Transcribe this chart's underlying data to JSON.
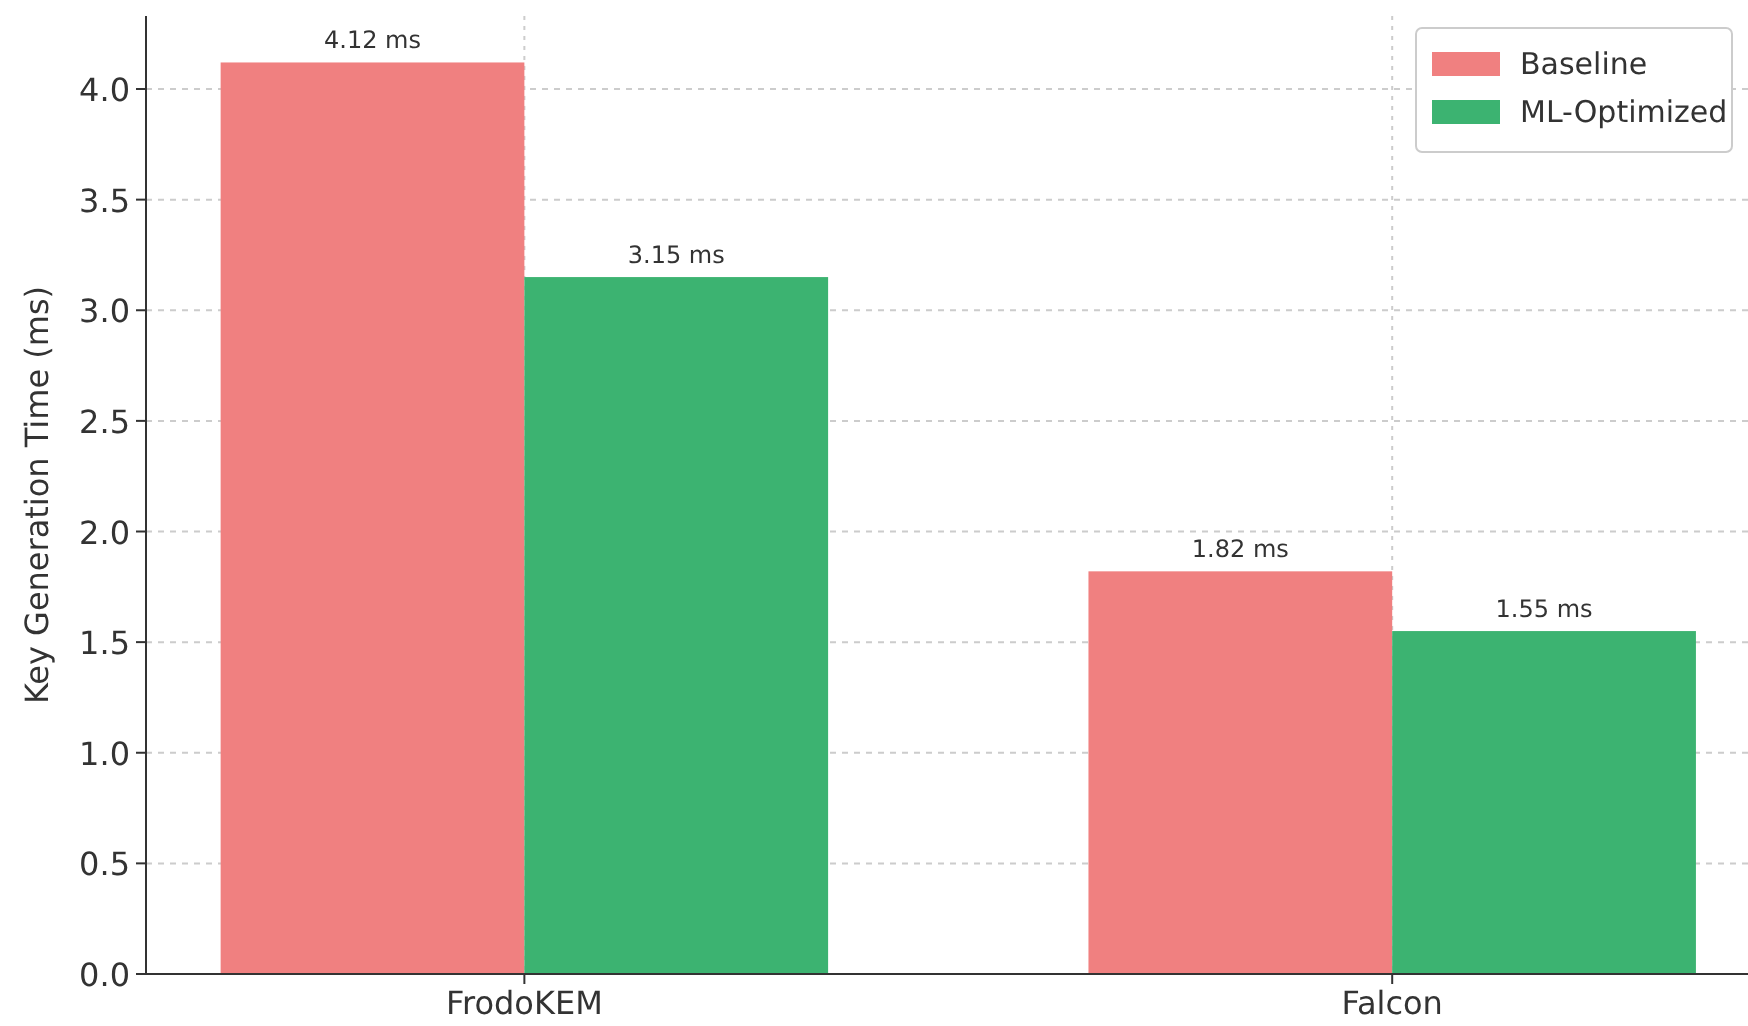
{
  "chart_data": {
    "type": "bar",
    "ylabel": "Key Generation Time (ms)",
    "categories": [
      "FrodoKEM",
      "Falcon"
    ],
    "series": [
      {
        "name": "Baseline",
        "color": "#f08080",
        "values": [
          4.12,
          1.82
        ],
        "value_labels": [
          "4.12 ms",
          "1.82 ms"
        ]
      },
      {
        "name": "ML-Optimized",
        "color": "#3cb371",
        "values": [
          3.15,
          1.55
        ],
        "value_labels": [
          "3.15 ms",
          "1.55 ms"
        ]
      }
    ],
    "ylim": [
      0,
      4.33
    ],
    "yticks": [
      {
        "value": 0,
        "label": "0.0"
      },
      {
        "value": 0.5,
        "label": "0.5"
      },
      {
        "value": 1,
        "label": "1.0"
      },
      {
        "value": 1.5,
        "label": "1.5"
      },
      {
        "value": 2,
        "label": "2.0"
      },
      {
        "value": 2.5,
        "label": "2.5"
      },
      {
        "value": 3,
        "label": "3.0"
      },
      {
        "value": 3.5,
        "label": "3.5"
      },
      {
        "value": 4,
        "label": "4.0"
      }
    ],
    "grid": true,
    "legend": "top right"
  }
}
